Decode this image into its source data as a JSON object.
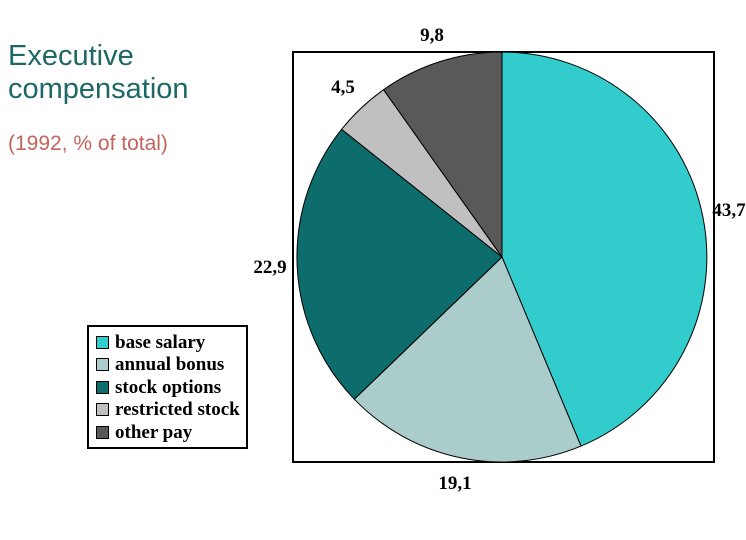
{
  "slide": {
    "title": "Executive compensation",
    "subtitle": "(1992, % of total)",
    "title_color": "#1d6765",
    "subtitle_color": "#c4645c"
  },
  "chart_data": {
    "type": "pie",
    "title": "Executive compensation",
    "subtitle": "(1992, % of total)",
    "unit": "% of total",
    "start_angle_deg": 0,
    "direction": "clockwise",
    "decimal_separator": ",",
    "legend_position": "bottom-left",
    "labels_outside": true,
    "outline_color": "#000000",
    "slices": [
      {
        "label": "base salary",
        "value": 43.7,
        "display": "43,7",
        "color": "#33cccc"
      },
      {
        "label": "annual bonus",
        "value": 19.1,
        "display": "19,1",
        "color": "#aaccca"
      },
      {
        "label": "stock options",
        "value": 22.9,
        "display": "22,9",
        "color": "#0d6c6c"
      },
      {
        "label": "restricted stock",
        "value": 4.5,
        "display": "4,5",
        "color": "#c0c0c0"
      },
      {
        "label": "other pay",
        "value": 9.8,
        "display": "9,8",
        "color": "#595959"
      }
    ]
  }
}
